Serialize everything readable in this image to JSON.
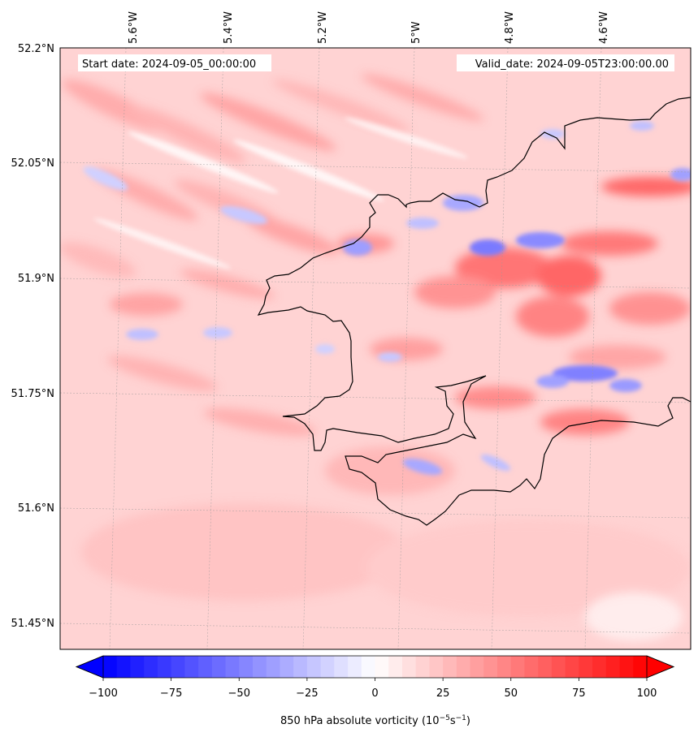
{
  "map": {
    "start_label": "Start date: 2024-09-05_00:00:00",
    "valid_label": "Valid_date: 2024-09-05T23:00:00.00",
    "lon_labels": [
      "5.6°W",
      "5.4°W",
      "5.2°W",
      "5°W",
      "4.8°W",
      "4.6°W"
    ],
    "lat_labels": [
      "52.2°N",
      "52.05°N",
      "51.9°N",
      "51.75°N",
      "51.6°N",
      "51.45°N"
    ],
    "field": "850 hPa absolute vorticity",
    "colormap": "bwr",
    "coastline_color": "#000000"
  },
  "colorbar": {
    "ticks": [
      "−100",
      "−75",
      "−50",
      "−25",
      "0",
      "25",
      "50",
      "75",
      "100"
    ],
    "min": -100,
    "max": 100,
    "label_main": "850 hPa absolute vorticity (10",
    "label_exp1": "−5",
    "label_mid": "s",
    "label_exp2": "−1",
    "label_end": ")",
    "extend": "both"
  }
}
